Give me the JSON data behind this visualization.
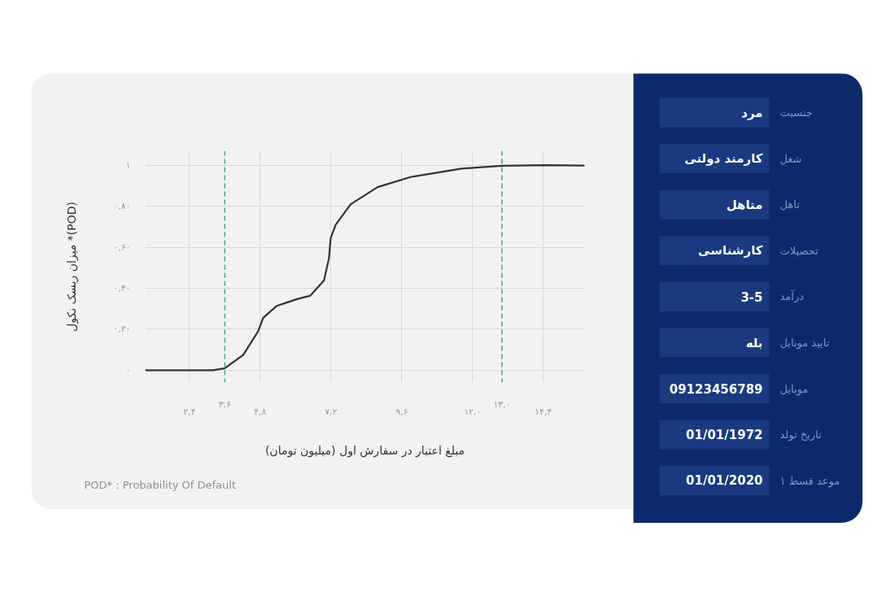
{
  "chart_data": [
    {
      "type": "line",
      "xlabel": "مبلغ اعتبار در سفارش اول (میلیون تومان)",
      "ylabel": "میزان ریسک نکول *(POD)",
      "xlim": [
        0.9,
        15.8
      ],
      "ylim": [
        -0.06,
        1.07
      ],
      "xticks": [
        {
          "value": 2.4,
          "label": "۲,۴"
        },
        {
          "value": 4.8,
          "label": "۴,۸"
        },
        {
          "value": 7.2,
          "label": "۷,۲"
        },
        {
          "value": 9.6,
          "label": "۹,۶"
        },
        {
          "value": 12.0,
          "label": "۱۲,۰"
        },
        {
          "value": 14.4,
          "label": "۱۴,۴"
        }
      ],
      "yticks": [
        {
          "value": 0,
          "label": "۰"
        },
        {
          "value": 0.2,
          "label": "۰,۲۰"
        },
        {
          "value": 0.4,
          "label": "۰,۴۰"
        },
        {
          "value": 0.6,
          "label": "۰,۶۰"
        },
        {
          "value": 0.8,
          "label": "۰,۸۰"
        },
        {
          "value": 1,
          "label": "۱"
        }
      ],
      "grid": true,
      "series": [
        {
          "color": "#333333",
          "x": [
            0.92,
            2.4,
            3.19,
            3.6,
            4.22,
            4.73,
            4.9,
            5.36,
            6.04,
            6.5,
            6.96,
            7.13,
            7.19,
            7.36,
            7.87,
            8.78,
            9.92,
            11.63,
            13.0,
            14.48,
            15.8
          ],
          "values": [
            0,
            0,
            0,
            0.01,
            0.074,
            0.19,
            0.256,
            0.314,
            0.347,
            0.364,
            0.438,
            0.545,
            0.645,
            0.71,
            0.81,
            0.893,
            0.943,
            0.983,
            0.997,
            1.0,
            0.998
          ]
        }
      ],
      "ref_lines": [
        {
          "axis": "x",
          "value": 3.6,
          "label": "۳,۶",
          "color": "#2bb673",
          "line_style": "dashed"
        },
        {
          "axis": "x",
          "value": 13.0,
          "label": "۱۳,۰",
          "color": "#2bb673",
          "line_style": "dashed"
        }
      ],
      "annotations": [
        "POD* : Probability Of Default"
      ]
    },
    {
      "type": "other",
      "annotations": [
        "جنسیت",
        "مرد",
        "شغل",
        "کارمند دولتی",
        "تاهل",
        "متاهل",
        "تحصیلات",
        "کارشناسی",
        "درآمد",
        "3-5",
        "تایید موبایل",
        "بله",
        "موبایل",
        "09123456789",
        "تاریخ تولد",
        "01/01/1972",
        "موعد قسط ۱",
        "01/01/2020"
      ]
    }
  ]
}
